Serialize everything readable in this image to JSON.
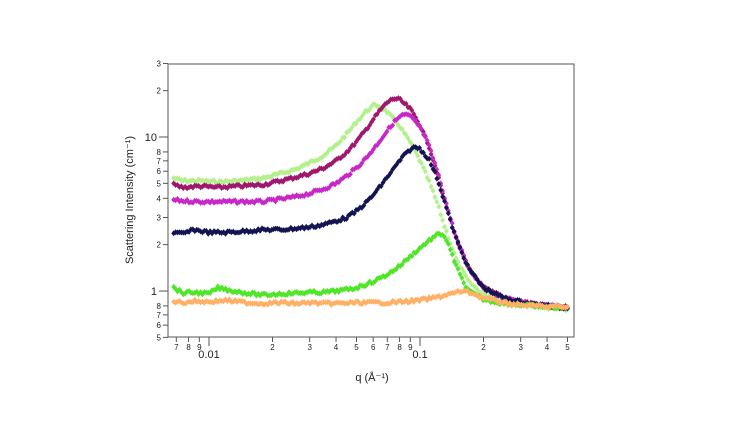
{
  "chart_data": {
    "type": "scatter",
    "title": "",
    "xlabel": "q (Å⁻¹)",
    "ylabel": "Scattering Intensity (cm⁻¹)",
    "xscale": "log",
    "yscale": "log",
    "xlim": [
      0.0065,
      0.53
    ],
    "ylim": [
      0.5,
      30
    ],
    "grid": false,
    "legend": null,
    "x_ticks": {
      "major": [
        {
          "value": 0.01,
          "label": "0.01"
        },
        {
          "value": 0.1,
          "label": "0.1"
        }
      ],
      "minor": [
        {
          "value": 0.007,
          "label": "7"
        },
        {
          "value": 0.008,
          "label": "8"
        },
        {
          "value": 0.009,
          "label": "9"
        },
        {
          "value": 0.02,
          "label": "2"
        },
        {
          "value": 0.03,
          "label": "3"
        },
        {
          "value": 0.04,
          "label": "4"
        },
        {
          "value": 0.05,
          "label": "5"
        },
        {
          "value": 0.06,
          "label": "6"
        },
        {
          "value": 0.07,
          "label": "7"
        },
        {
          "value": 0.08,
          "label": "8"
        },
        {
          "value": 0.09,
          "label": "9"
        },
        {
          "value": 0.2,
          "label": "2"
        },
        {
          "value": 0.3,
          "label": "3"
        },
        {
          "value": 0.4,
          "label": "4"
        },
        {
          "value": 0.5,
          "label": "5"
        }
      ]
    },
    "y_ticks": {
      "major": [
        {
          "value": 1,
          "label": "1"
        },
        {
          "value": 10,
          "label": "10"
        }
      ],
      "minor": [
        {
          "value": 0.5,
          "label": "5"
        },
        {
          "value": 0.6,
          "label": "6"
        },
        {
          "value": 0.7,
          "label": "7"
        },
        {
          "value": 0.8,
          "label": "8"
        },
        {
          "value": 2,
          "label": "2"
        },
        {
          "value": 3,
          "label": "3"
        },
        {
          "value": 4,
          "label": "4"
        },
        {
          "value": 5,
          "label": "5"
        },
        {
          "value": 6,
          "label": "6"
        },
        {
          "value": 7,
          "label": "7"
        },
        {
          "value": 8,
          "label": "8"
        },
        {
          "value": 20,
          "label": "2"
        },
        {
          "value": 30,
          "label": "3"
        }
      ]
    },
    "series": [
      {
        "name": "light-green",
        "color": "#b4f08c",
        "q": [
          0.0068,
          0.0075,
          0.009,
          0.011,
          0.014,
          0.018,
          0.022,
          0.026,
          0.03,
          0.035,
          0.04,
          0.045,
          0.05,
          0.055,
          0.06,
          0.065,
          0.07,
          0.08,
          0.09,
          0.1,
          0.11,
          0.12,
          0.13,
          0.14,
          0.15,
          0.17,
          0.2,
          0.25,
          0.3,
          0.35,
          0.4,
          0.45,
          0.5
        ],
        "I": [
          5.4,
          5.2,
          5.2,
          5.1,
          5.2,
          5.4,
          5.8,
          6.2,
          6.8,
          7.6,
          8.8,
          10.5,
          12.5,
          14.5,
          16,
          15.8,
          14.5,
          11.8,
          9.2,
          7.0,
          5.2,
          3.8,
          2.7,
          2.0,
          1.55,
          1.15,
          0.95,
          0.86,
          0.83,
          0.8,
          0.78,
          0.77,
          0.76
        ]
      },
      {
        "name": "dark-magenta",
        "color": "#a0186e",
        "q": [
          0.0068,
          0.0075,
          0.009,
          0.011,
          0.014,
          0.018,
          0.022,
          0.026,
          0.03,
          0.035,
          0.04,
          0.045,
          0.05,
          0.055,
          0.06,
          0.065,
          0.07,
          0.075,
          0.08,
          0.09,
          0.1,
          0.11,
          0.12,
          0.13,
          0.14,
          0.15,
          0.17,
          0.2,
          0.25,
          0.3,
          0.35,
          0.4,
          0.45,
          0.5
        ],
        "I": [
          4.9,
          4.7,
          4.8,
          4.7,
          4.8,
          4.9,
          5.2,
          5.5,
          5.8,
          6.3,
          7.0,
          8.0,
          9.3,
          11.0,
          13.0,
          15.0,
          16.8,
          17.8,
          17.5,
          15.2,
          12.0,
          8.8,
          6.0,
          4.0,
          2.8,
          2.1,
          1.4,
          1.05,
          0.9,
          0.85,
          0.82,
          0.8,
          0.79,
          0.78
        ]
      },
      {
        "name": "magenta",
        "color": "#c828c8",
        "q": [
          0.0068,
          0.0075,
          0.009,
          0.011,
          0.014,
          0.018,
          0.022,
          0.026,
          0.03,
          0.035,
          0.04,
          0.045,
          0.05,
          0.055,
          0.06,
          0.065,
          0.07,
          0.075,
          0.08,
          0.085,
          0.09,
          0.1,
          0.11,
          0.12,
          0.13,
          0.14,
          0.15,
          0.17,
          0.2,
          0.25,
          0.3,
          0.35,
          0.4,
          0.45,
          0.5
        ],
        "I": [
          3.9,
          3.85,
          3.8,
          3.8,
          3.8,
          3.8,
          3.95,
          4.1,
          4.3,
          4.6,
          5.0,
          5.6,
          6.3,
          7.2,
          8.3,
          9.6,
          11.0,
          12.4,
          13.5,
          14.0,
          13.6,
          11.6,
          8.9,
          6.2,
          4.2,
          2.9,
          2.15,
          1.4,
          1.05,
          0.9,
          0.85,
          0.82,
          0.8,
          0.79,
          0.78
        ]
      },
      {
        "name": "navy",
        "color": "#141452",
        "q": [
          0.0068,
          0.0075,
          0.0085,
          0.01,
          0.012,
          0.015,
          0.018,
          0.022,
          0.026,
          0.03,
          0.035,
          0.04,
          0.045,
          0.05,
          0.055,
          0.06,
          0.065,
          0.07,
          0.075,
          0.08,
          0.085,
          0.09,
          0.095,
          0.1,
          0.11,
          0.12,
          0.13,
          0.14,
          0.15,
          0.17,
          0.2,
          0.25,
          0.3,
          0.35,
          0.4,
          0.45,
          0.5
        ],
        "I": [
          2.4,
          2.35,
          2.5,
          2.4,
          2.4,
          2.45,
          2.5,
          2.5,
          2.55,
          2.6,
          2.7,
          2.85,
          3.0,
          3.3,
          3.7,
          4.2,
          4.8,
          5.5,
          6.2,
          7.0,
          7.7,
          8.3,
          8.6,
          8.4,
          7.2,
          5.5,
          3.9,
          2.8,
          2.1,
          1.4,
          1.05,
          0.9,
          0.85,
          0.82,
          0.8,
          0.79,
          0.78
        ]
      },
      {
        "name": "green",
        "color": "#50e628",
        "q": [
          0.0068,
          0.0075,
          0.0085,
          0.01,
          0.011,
          0.013,
          0.015,
          0.018,
          0.022,
          0.026,
          0.03,
          0.035,
          0.04,
          0.045,
          0.05,
          0.055,
          0.06,
          0.07,
          0.08,
          0.09,
          0.1,
          0.11,
          0.12,
          0.125,
          0.13,
          0.135,
          0.14,
          0.15,
          0.16,
          0.17,
          0.2,
          0.25,
          0.3,
          0.35,
          0.4,
          0.45,
          0.5
        ],
        "I": [
          1.05,
          0.97,
          0.98,
          0.96,
          1.05,
          1.0,
          0.97,
          0.94,
          0.96,
          0.97,
          0.98,
          0.98,
          1.0,
          1.02,
          1.05,
          1.1,
          1.15,
          1.28,
          1.45,
          1.68,
          1.9,
          2.12,
          2.3,
          2.35,
          2.3,
          2.05,
          1.8,
          1.4,
          1.15,
          1.0,
          0.88,
          0.83,
          0.81,
          0.8,
          0.79,
          0.78,
          0.78
        ]
      },
      {
        "name": "orange",
        "color": "#ffb064",
        "q": [
          0.0068,
          0.0075,
          0.0085,
          0.01,
          0.012,
          0.015,
          0.018,
          0.022,
          0.026,
          0.03,
          0.035,
          0.04,
          0.05,
          0.06,
          0.07,
          0.08,
          0.09,
          0.1,
          0.12,
          0.14,
          0.16,
          0.18,
          0.2,
          0.25,
          0.3,
          0.35,
          0.4,
          0.45,
          0.5
        ],
        "I": [
          0.86,
          0.84,
          0.86,
          0.85,
          0.87,
          0.84,
          0.83,
          0.84,
          0.83,
          0.84,
          0.83,
          0.83,
          0.84,
          0.84,
          0.84,
          0.85,
          0.86,
          0.87,
          0.91,
          0.96,
          1.0,
          0.96,
          0.9,
          0.84,
          0.81,
          0.8,
          0.79,
          0.79,
          0.78
        ]
      }
    ]
  }
}
